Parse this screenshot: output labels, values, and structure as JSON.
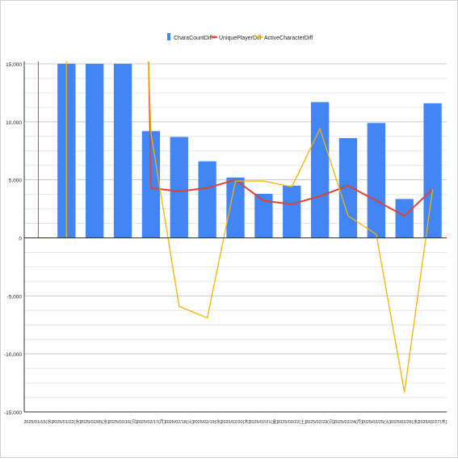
{
  "colors": {
    "bar": "#4285f4",
    "unique": "#db4437",
    "active": "#f4b400",
    "grid_major": "#c8c8c8",
    "grid_minor": "#e6e6e6",
    "axis": "#333333",
    "text": "#222222"
  },
  "chart_data": {
    "type": "bar",
    "categories": [
      "2025/01/15(水)",
      "2025/01/22(水)",
      "2025/02/05(水)",
      "2025/02/16(日)",
      "2025/02/17(月)",
      "2025/02/18(火)",
      "2025/02/19(水)",
      "2025/02/20(木)",
      "2025/02/21(金)",
      "2025/02/22(土)",
      "2025/02/23(日)",
      "2025/02/24(月)",
      "2025/02/25(火)",
      "2025/02/26(水)",
      "2025/02/27(木)"
    ],
    "y_ticks": [
      "15,000",
      "10,000",
      "5,000",
      "0",
      "-5,000",
      "-10,000",
      "-15,000"
    ],
    "ylim": [
      -15000,
      15000
    ],
    "legend_position": "top",
    "grid": true,
    "series": [
      {
        "name": "CharaCountDiff",
        "kind": "bar",
        "values": [
          0,
          15000,
          15000,
          15000,
          9200,
          8700,
          6600,
          5200,
          3800,
          4500,
          11700,
          8600,
          9900,
          3350,
          11600
        ]
      },
      {
        "name": "UniquePlayerDiff",
        "kind": "line",
        "values": [
          15000,
          null,
          null,
          null,
          4300,
          4000,
          4300,
          5000,
          3200,
          2900,
          3600,
          4500,
          3200,
          1900,
          4200
        ]
      },
      {
        "name": "ActiveCharacterDiff",
        "kind": "line",
        "values": [
          0,
          0,
          null,
          null,
          9000,
          -5900,
          -6900,
          4900,
          4900,
          4400,
          9400,
          1900,
          300,
          -13300,
          4200
        ]
      }
    ]
  }
}
